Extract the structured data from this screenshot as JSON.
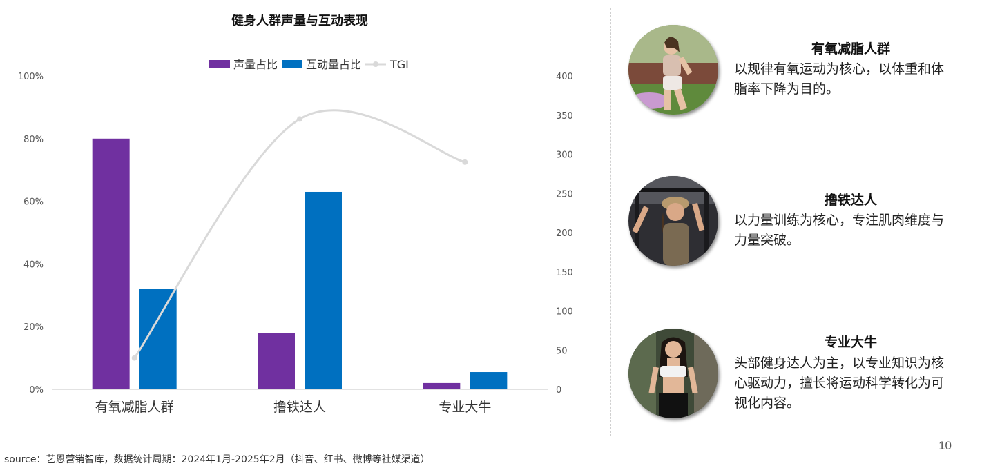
{
  "chart_data": {
    "type": "bar",
    "title": "健身人群声量与互动表现",
    "categories": [
      "有氧减脂人群",
      "撸铁达人",
      "专业大牛"
    ],
    "series": [
      {
        "name": "声量占比",
        "axis": "left",
        "color": "#7030A0",
        "values": [
          80,
          18,
          2
        ]
      },
      {
        "name": "互动量占比",
        "axis": "left",
        "color": "#0070C0",
        "values": [
          32,
          63,
          5.5
        ]
      },
      {
        "name": "TGI",
        "axis": "right",
        "type": "line",
        "color": "#d9d9d9",
        "values": [
          40,
          345,
          290
        ]
      }
    ],
    "y_left": {
      "min": 0,
      "max": 100,
      "ticks": [
        "0%",
        "20%",
        "40%",
        "60%",
        "80%",
        "100%"
      ],
      "tick_values": [
        0,
        20,
        40,
        60,
        80,
        100
      ]
    },
    "y_right": {
      "min": 0,
      "max": 400,
      "ticks": [
        "0",
        "50",
        "100",
        "150",
        "200",
        "250",
        "300",
        "350",
        "400"
      ],
      "tick_values": [
        0,
        50,
        100,
        150,
        200,
        250,
        300,
        350,
        400
      ]
    },
    "legend_position": "top",
    "grid": false
  },
  "personas": [
    {
      "title": "有氧减脂人群",
      "desc_lines": [
        "以规律有氧运动为核心，以体重和体",
        "脂率下降为目的。"
      ]
    },
    {
      "title": "撸铁达人",
      "desc_lines": [
        "以力量训练为核心，专注肌肉维度与",
        "力量突破。"
      ]
    },
    {
      "title": "专业大牛",
      "desc_lines": [
        "头部健身达人为主，以专业知识为核",
        "心驱动力，擅长将运动科学转化为可",
        "视化内容。"
      ]
    }
  ],
  "page_number": "10",
  "source": "source：艺恩营销智库，数据统计周期：2024年1月-2025年2月（抖音、红书、微博等社媒渠道）"
}
